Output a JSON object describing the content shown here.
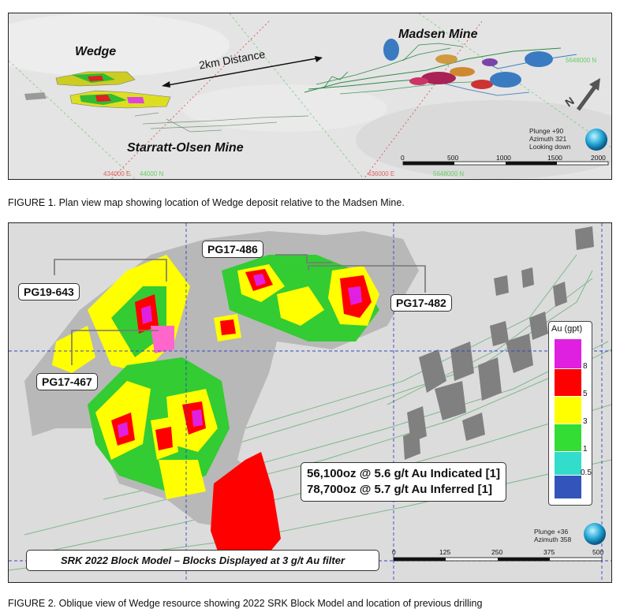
{
  "figure1": {
    "labels": {
      "wedge": "Wedge",
      "madsen": "Madsen Mine",
      "starratt": "Starratt-Olsen Mine",
      "distance": "2km Distance"
    },
    "view": {
      "line1": "Plunge +90",
      "line2": "Azimuth 321",
      "line3": "Looking down"
    },
    "north": "N",
    "scale_ticks": [
      "0",
      "500",
      "1000",
      "1500",
      "2000"
    ],
    "grid_labels": [
      "434000 E",
      "44000 N",
      "436000 E",
      "5648000 N",
      "5648000 N"
    ],
    "caption": "FIGURE 1. Plan view map showing location of Wedge deposit relative to the Madsen Mine."
  },
  "figure2": {
    "holes": [
      "PG17-486",
      "PG19-643",
      "PG17-482",
      "PG17-467"
    ],
    "legend": {
      "title": "Au (gpt)",
      "ticks": [
        "8",
        "5",
        "3",
        "1",
        "0.5"
      ],
      "colors": [
        "#e020e0",
        "#ff0000",
        "#ffff00",
        "#33dd33",
        "#33ddcc",
        "#3355bb"
      ]
    },
    "resources": {
      "line1": "56,100oz @ 5.6 g/t Au Indicated [1]",
      "line2": "78,700oz @ 5.7 g/t Au Inferred [1]"
    },
    "view": {
      "line1": "Plunge +36",
      "line2": "Azimuth 358"
    },
    "scale_ticks": [
      "0",
      "125",
      "250",
      "375",
      "500"
    ],
    "model_note": "SRK 2022 Block Model – Blocks Displayed at 3 g/t Au filter",
    "caption": "FIGURE 2. Oblique view of Wedge resource showing 2022 SRK Block Model and location of previous drilling"
  }
}
